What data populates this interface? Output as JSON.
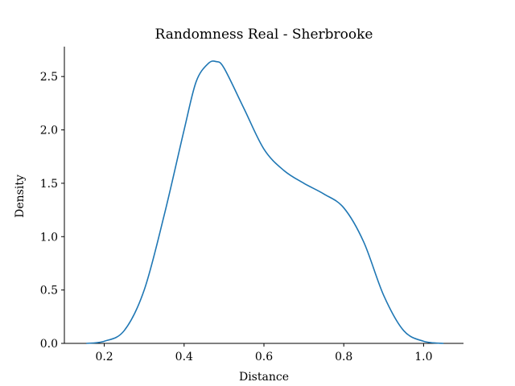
{
  "chart_data": {
    "type": "line",
    "title": "Randomness Real - Sherbrooke",
    "xlabel": "Distance",
    "ylabel": "Density",
    "xlim": [
      0.1,
      1.1
    ],
    "ylim": [
      0.0,
      2.78
    ],
    "xticks": [
      0.2,
      0.4,
      0.6,
      0.8,
      1.0
    ],
    "xtick_labels": [
      "0.2",
      "0.4",
      "0.6",
      "0.8",
      "1.0"
    ],
    "yticks": [
      0.0,
      0.5,
      1.0,
      1.5,
      2.0,
      2.5
    ],
    "ytick_labels": [
      "0.0",
      "0.5",
      "1.0",
      "1.5",
      "2.0",
      "2.5"
    ],
    "grid": false,
    "series": [
      {
        "color": "#1f77b4",
        "x": [
          0.155,
          0.2,
          0.25,
          0.3,
          0.35,
          0.4,
          0.43,
          0.46,
          0.48,
          0.5,
          0.55,
          0.6,
          0.65,
          0.7,
          0.75,
          0.8,
          0.85,
          0.9,
          0.95,
          1.0,
          1.05
        ],
        "y": [
          0.0,
          0.02,
          0.12,
          0.5,
          1.2,
          2.0,
          2.45,
          2.62,
          2.64,
          2.58,
          2.2,
          1.82,
          1.62,
          1.5,
          1.4,
          1.27,
          0.95,
          0.45,
          0.12,
          0.02,
          0.0
        ]
      }
    ]
  }
}
